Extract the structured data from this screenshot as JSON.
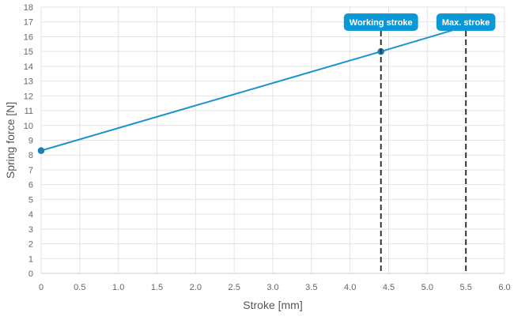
{
  "chart_data": {
    "type": "line",
    "xlabel": "Stroke [mm]",
    "ylabel": "Spring force [N]",
    "xlim": [
      0,
      6
    ],
    "ylim": [
      0,
      18
    ],
    "x_ticks": [
      "0",
      "0.5",
      "1.0",
      "1.5",
      "2.0",
      "2.5",
      "3.0",
      "3.5",
      "4.0",
      "4.5",
      "5.0",
      "5.5",
      "6.0"
    ],
    "y_ticks": [
      "0",
      "1",
      "2",
      "3",
      "4",
      "5",
      "6",
      "7",
      "8",
      "9",
      "10",
      "11",
      "12",
      "13",
      "14",
      "15",
      "16",
      "17",
      "18"
    ],
    "grid": true,
    "series": [
      {
        "x": [
          0,
          4.4,
          5.5
        ],
        "y": [
          8.3,
          15.0,
          16.7
        ],
        "markers_at": [
          0,
          4.4
        ],
        "color": "#1a94d0"
      }
    ],
    "markers": [
      {
        "label": "Working stroke",
        "x": 4.4
      },
      {
        "label": "Max. stroke",
        "x": 5.5
      }
    ],
    "colors": {
      "series": "#1a94d0",
      "marker_line": "#333333",
      "tag_bg": "#0b98d6",
      "grid": "#e3e3e3"
    }
  }
}
